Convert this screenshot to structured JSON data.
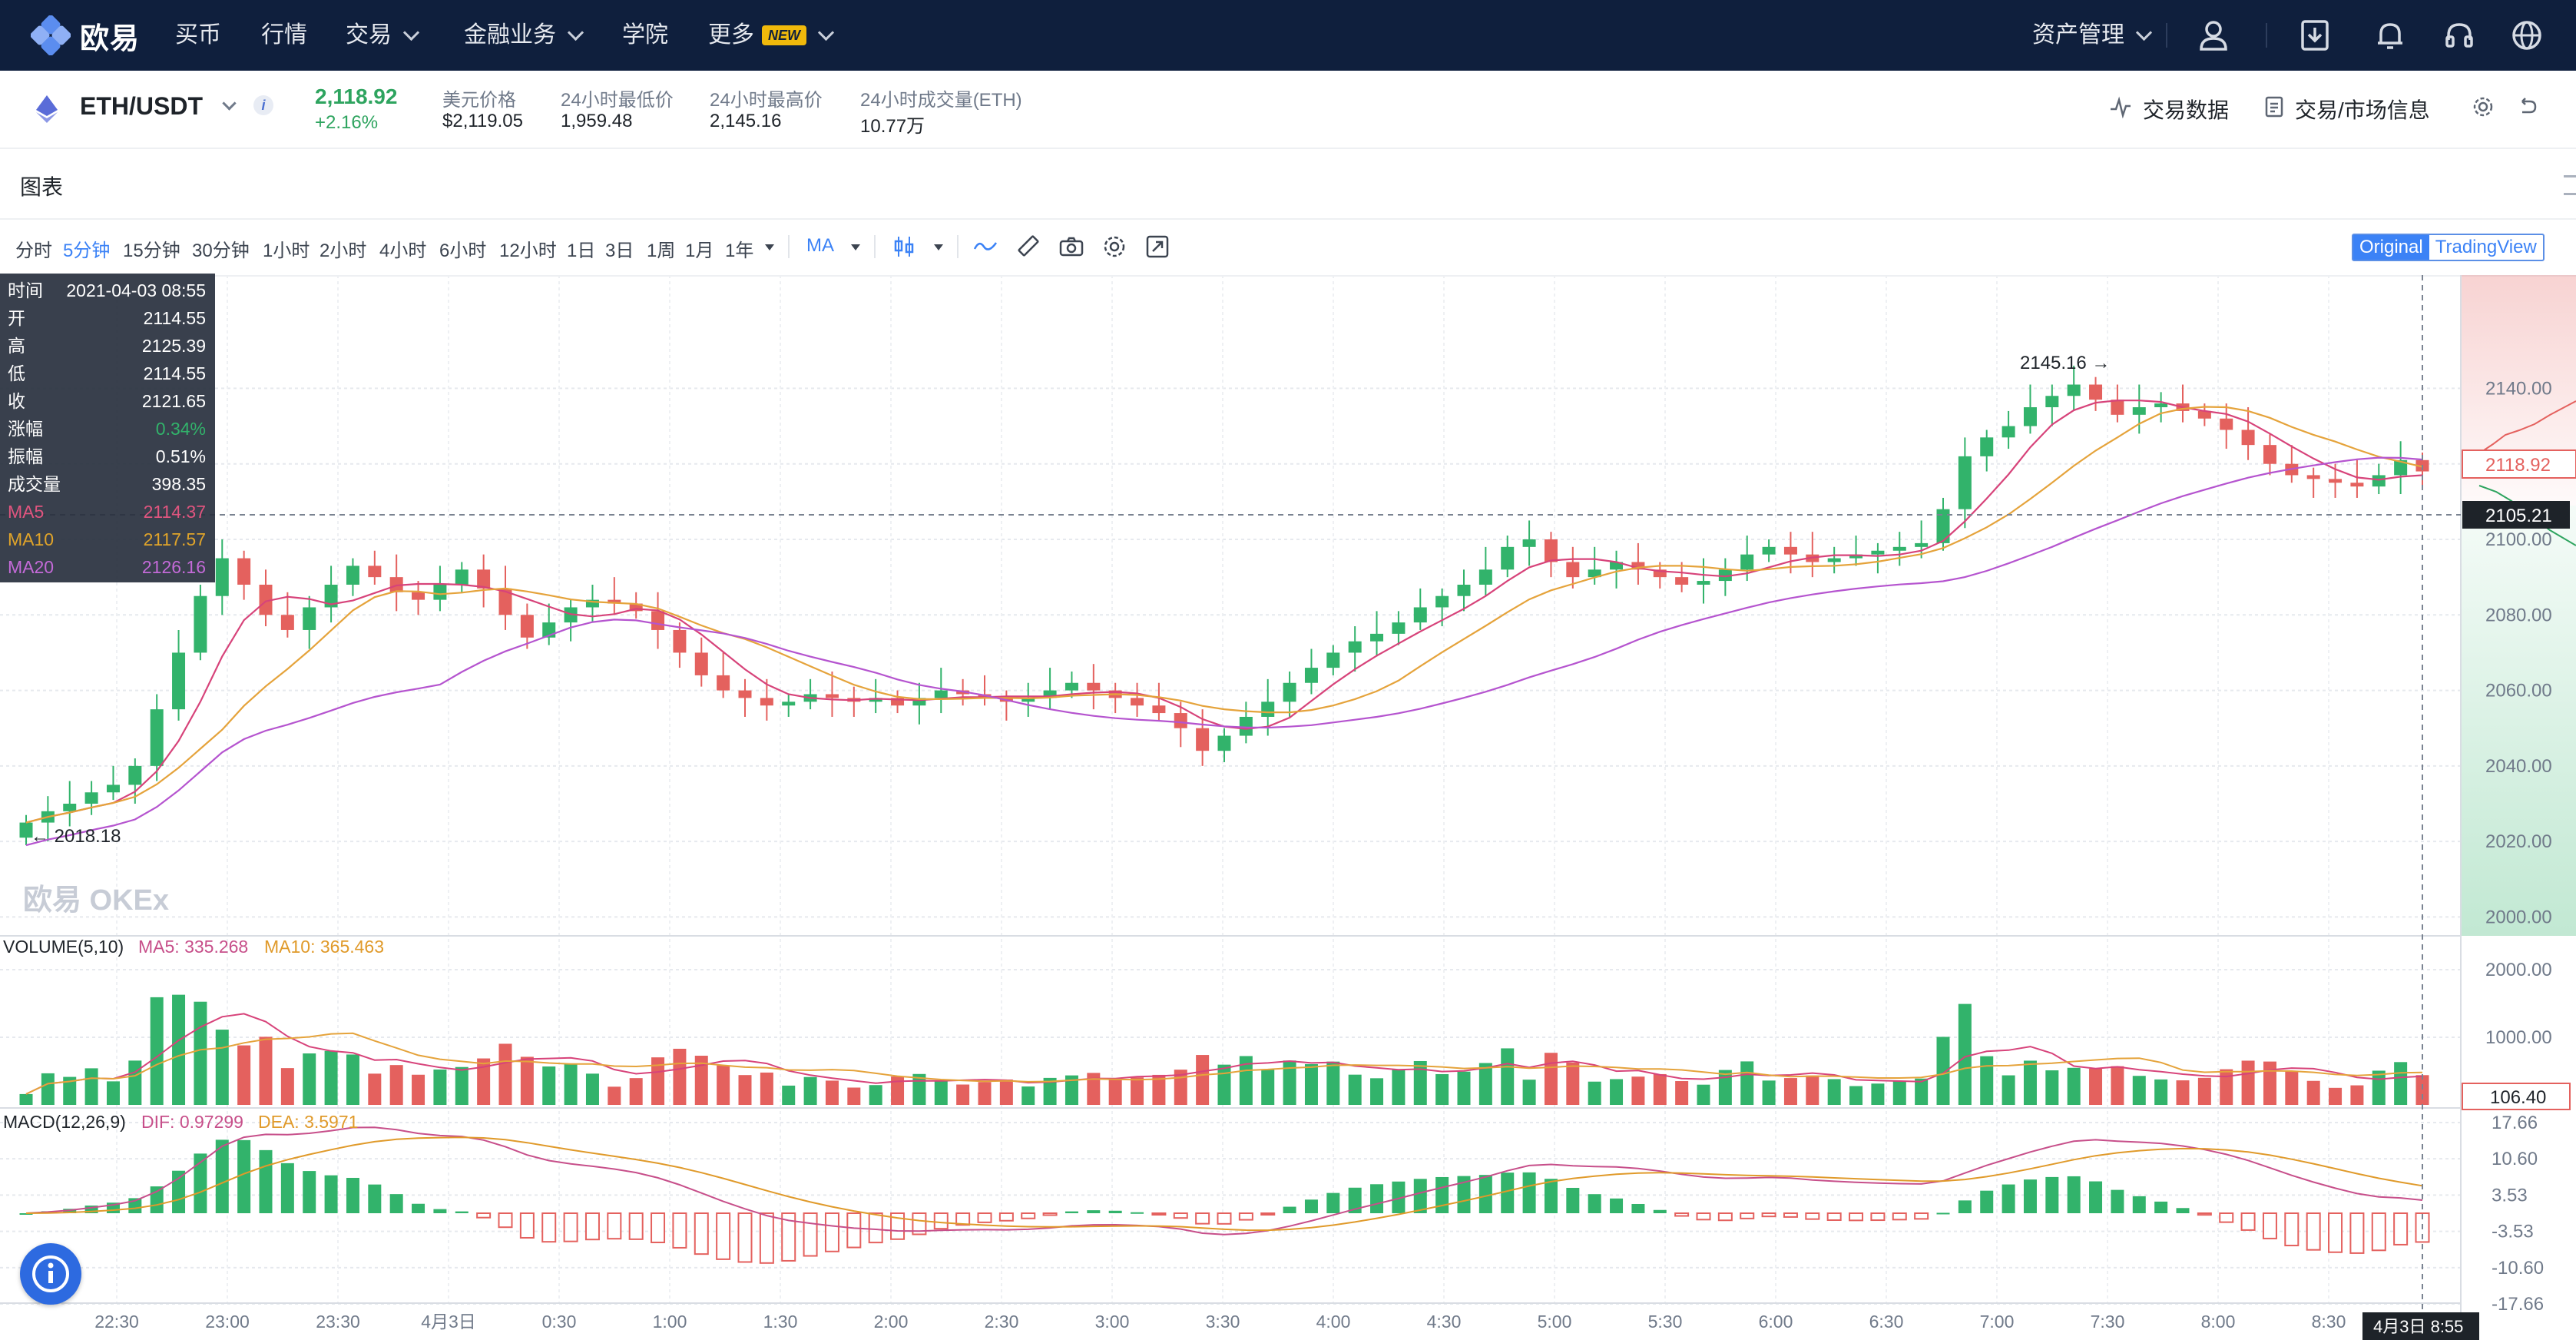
{
  "nav": {
    "logo_text": "欧易",
    "items": [
      "买币",
      "行情",
      "交易",
      "金融业务",
      "学院",
      "更多"
    ],
    "new_badge": "NEW",
    "asset_management": "资产管理"
  },
  "ticker": {
    "pair": "ETH/USDT",
    "info_icon": "i",
    "price": "2,118.92",
    "change": "+2.16%",
    "usd_price_label": "美元价格",
    "usd_price": "$2,119.05",
    "low_label": "24小时最低价",
    "low": "1,959.48",
    "high_label": "24小时最高价",
    "high": "2,145.16",
    "volume_label": "24小时成交量(ETH)",
    "volume": "10.77万",
    "trading_data": "交易数据",
    "market_info": "交易/市场信息"
  },
  "chart_header": {
    "title": "图表",
    "timeframes": [
      "分时",
      "5分钟",
      "15分钟",
      "30分钟",
      "1小时",
      "2小时",
      "4小时",
      "6小时",
      "12小时",
      "1日",
      "3日",
      "1周",
      "1月",
      "1年"
    ],
    "active_timeframe": "5分钟",
    "indicator": "MA",
    "view_original": "Original",
    "view_tradingview": "TradingView"
  },
  "info_box": {
    "rows": [
      {
        "k": "时间",
        "v": "2021-04-03 08:55"
      },
      {
        "k": "开",
        "v": "2114.55"
      },
      {
        "k": "高",
        "v": "2125.39"
      },
      {
        "k": "低",
        "v": "2114.55"
      },
      {
        "k": "收",
        "v": "2121.65"
      },
      {
        "k": "涨幅",
        "v": "0.34%"
      },
      {
        "k": "振幅",
        "v": "0.51%"
      },
      {
        "k": "成交量",
        "v": "398.35"
      },
      {
        "k": "MA5",
        "v": "2114.37"
      },
      {
        "k": "MA10",
        "v": "2117.57"
      },
      {
        "k": "MA20",
        "v": "2126.16"
      }
    ]
  },
  "chart_data": {
    "type": "candlestick",
    "price_axis": {
      "ticks": [
        "2140.00",
        "2120.00",
        "2100.00",
        "2080.00",
        "2060.00",
        "2040.00",
        "2020.00",
        "2000.00"
      ],
      "range": [
        1995,
        2170
      ]
    },
    "last_price_tag": "2118.92",
    "crosshair_price_tag": "2105.21",
    "max_label": "2145.16 →",
    "min_label": "← 2018.18",
    "watermark": "欧易 OKEx",
    "time_ticks": [
      "22:30",
      "23:00",
      "23:30",
      "4月3日",
      "0:30",
      "1:00",
      "1:30",
      "2:00",
      "2:30",
      "3:00",
      "3:30",
      "4:00",
      "4:30",
      "5:00",
      "5:30",
      "6:00",
      "6:30",
      "7:00",
      "7:30",
      "8:00",
      "8:30"
    ],
    "crosshair_time_tag": "4月3日 8:55",
    "closes": [
      2025,
      2028,
      2030,
      2033,
      2035,
      2040,
      2055,
      2070,
      2085,
      2095,
      2088,
      2080,
      2076,
      2082,
      2088,
      2093,
      2090,
      2086,
      2084,
      2088,
      2092,
      2087,
      2080,
      2074,
      2078,
      2082,
      2084,
      2083,
      2081,
      2076,
      2070,
      2064,
      2060,
      2058,
      2056,
      2057,
      2059,
      2058,
      2057,
      2058,
      2056,
      2058,
      2060,
      2059,
      2058,
      2057,
      2058,
      2060,
      2062,
      2060,
      2058,
      2056,
      2054,
      2050,
      2044,
      2048,
      2053,
      2057,
      2062,
      2066,
      2070,
      2073,
      2075,
      2078,
      2082,
      2085,
      2088,
      2092,
      2098,
      2100,
      2094,
      2090,
      2092,
      2094,
      2092,
      2090,
      2088,
      2089,
      2092,
      2096,
      2098,
      2096,
      2094,
      2095,
      2096,
      2097,
      2098,
      2099,
      2108,
      2122,
      2127,
      2130,
      2135,
      2138,
      2141,
      2137,
      2133,
      2135,
      2136,
      2134,
      2132,
      2129,
      2125,
      2120,
      2117,
      2116,
      2115,
      2114,
      2117,
      2121,
      2118
    ],
    "volume": {
      "label": "VOLUME(5,10)",
      "ma5": "MA5: 335.268",
      "ma10": "MA10: 365.463",
      "ticks": [
        "2000.00",
        "1000.00"
      ],
      "last_tag": "106.40"
    },
    "macd": {
      "label": "MACD(12,26,9)",
      "dif": "DIF: 0.97299",
      "dea": "DEA: 3.5971",
      "ticks": [
        "17.66",
        "10.60",
        "3.53",
        "-3.53",
        "-10.60",
        "-17.66"
      ]
    }
  }
}
